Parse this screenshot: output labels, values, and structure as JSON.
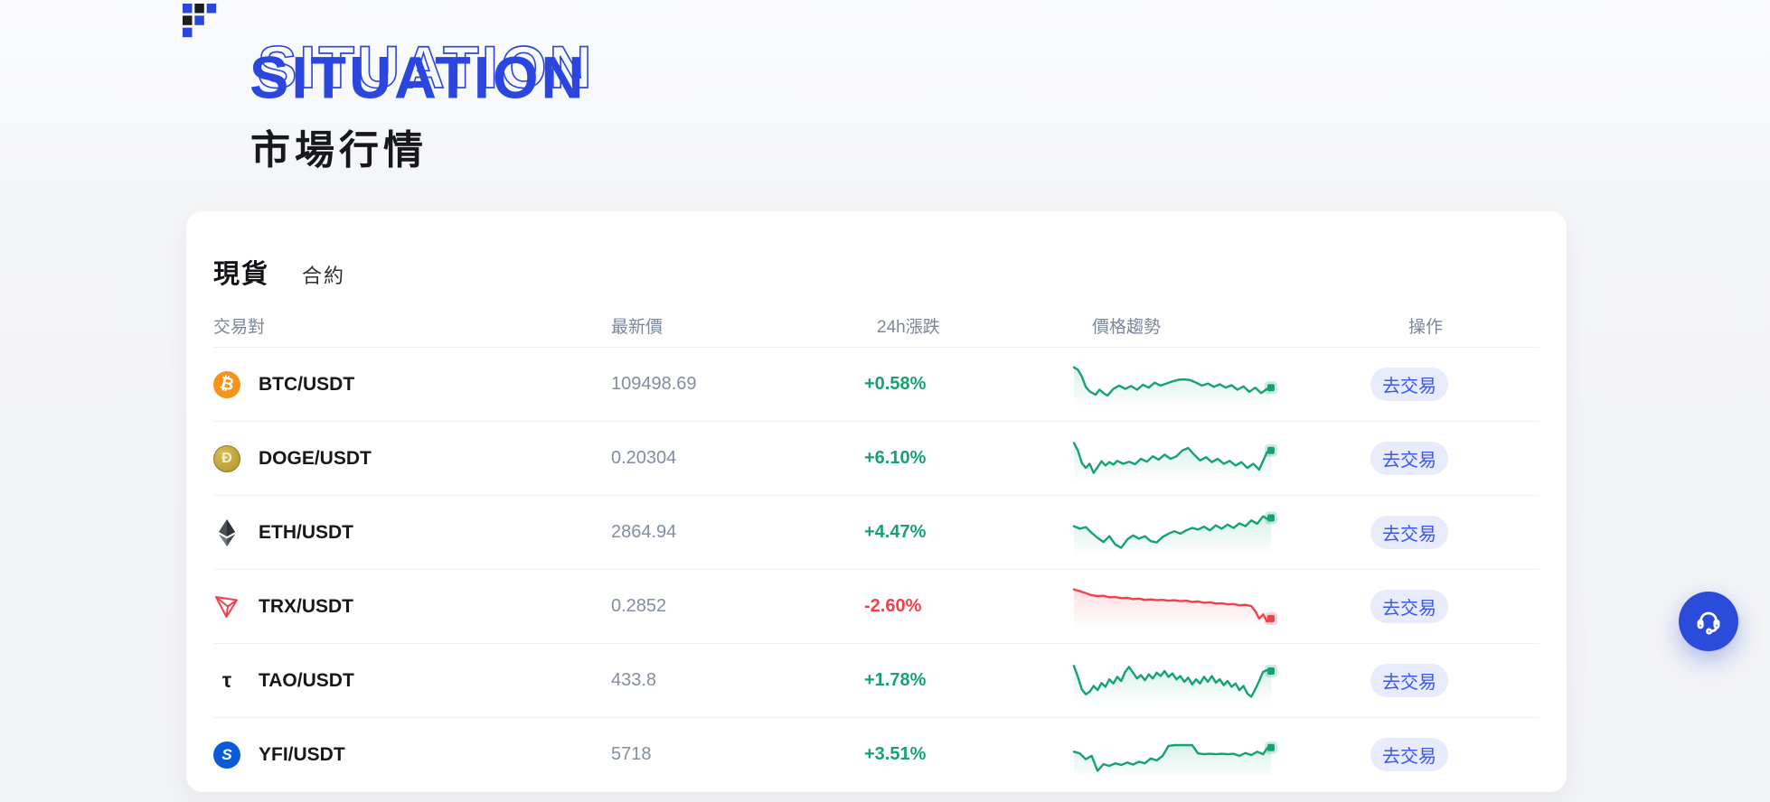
{
  "colors": {
    "brand_blue": "#2B46DF",
    "logo_black": "#1D1D1F",
    "up_green": "#14A36E",
    "down_red": "#F0414D",
    "price_gray": "#828DA3",
    "header_gray": "#7C8799",
    "button_bg": "#E7EBFC",
    "button_text": "#3B58E9",
    "support_blue": "#2B4BDB",
    "bitcoin_orange": "#F7931A",
    "doge_gold": "#C9A83C",
    "yfi_blue": "#0A5BD8"
  },
  "header": {
    "title_en": "SITUATION",
    "title_zh": "市場行情"
  },
  "market_card": {
    "tabs": [
      {
        "label": "現貨",
        "active": true
      },
      {
        "label": "合約",
        "active": false
      }
    ],
    "columns": [
      "交易對",
      "最新價",
      "24h漲跌",
      "價格趨勢",
      "操作"
    ],
    "action_label": "去交易",
    "rows": [
      {
        "pair": "BTC/USDT",
        "icon": "btc",
        "price": "109498.69",
        "change": "+0.58%",
        "direction": "up",
        "spark": [
          [
            0,
            8
          ],
          [
            2,
            14
          ],
          [
            4,
            30
          ],
          [
            6,
            55
          ],
          [
            8,
            66
          ],
          [
            11,
            74
          ],
          [
            13,
            62
          ],
          [
            15,
            70
          ],
          [
            17,
            76
          ],
          [
            20,
            60
          ],
          [
            23,
            52
          ],
          [
            26,
            60
          ],
          [
            29,
            53
          ],
          [
            32,
            62
          ],
          [
            35,
            50
          ],
          [
            38,
            57
          ],
          [
            41,
            45
          ],
          [
            44,
            52
          ],
          [
            47,
            47
          ],
          [
            50,
            42
          ],
          [
            53,
            38
          ],
          [
            56,
            37
          ],
          [
            59,
            39
          ],
          [
            62,
            45
          ],
          [
            65,
            52
          ],
          [
            68,
            47
          ],
          [
            71,
            55
          ],
          [
            74,
            49
          ],
          [
            77,
            57
          ],
          [
            80,
            51
          ],
          [
            83,
            62
          ],
          [
            86,
            54
          ],
          [
            89,
            67
          ],
          [
            92,
            57
          ],
          [
            95,
            70
          ],
          [
            98,
            60
          ],
          [
            100,
            57
          ]
        ]
      },
      {
        "pair": "DOGE/USDT",
        "icon": "doge",
        "price": "0.20304",
        "change": "+6.10%",
        "direction": "up",
        "spark": [
          [
            0,
            12
          ],
          [
            2,
            30
          ],
          [
            4,
            60
          ],
          [
            6,
            72
          ],
          [
            8,
            62
          ],
          [
            10,
            84
          ],
          [
            12,
            70
          ],
          [
            14,
            56
          ],
          [
            16,
            66
          ],
          [
            18,
            58
          ],
          [
            20,
            64
          ],
          [
            22,
            55
          ],
          [
            25,
            62
          ],
          [
            28,
            57
          ],
          [
            31,
            63
          ],
          [
            34,
            50
          ],
          [
            37,
            57
          ],
          [
            40,
            44
          ],
          [
            43,
            52
          ],
          [
            46,
            40
          ],
          [
            49,
            50
          ],
          [
            52,
            44
          ],
          [
            55,
            30
          ],
          [
            58,
            24
          ],
          [
            61,
            40
          ],
          [
            64,
            54
          ],
          [
            67,
            46
          ],
          [
            70,
            58
          ],
          [
            73,
            50
          ],
          [
            76,
            62
          ],
          [
            79,
            55
          ],
          [
            82,
            66
          ],
          [
            85,
            58
          ],
          [
            88,
            72
          ],
          [
            91,
            62
          ],
          [
            94,
            76
          ],
          [
            96,
            55
          ],
          [
            98,
            34
          ],
          [
            100,
            30
          ]
        ]
      },
      {
        "pair": "ETH/USDT",
        "icon": "eth",
        "price": "2864.94",
        "change": "+4.47%",
        "direction": "up",
        "spark": [
          [
            0,
            34
          ],
          [
            3,
            40
          ],
          [
            6,
            36
          ],
          [
            9,
            50
          ],
          [
            12,
            62
          ],
          [
            15,
            72
          ],
          [
            18,
            58
          ],
          [
            21,
            78
          ],
          [
            24,
            86
          ],
          [
            27,
            66
          ],
          [
            30,
            56
          ],
          [
            33,
            64
          ],
          [
            36,
            58
          ],
          [
            39,
            70
          ],
          [
            42,
            73
          ],
          [
            45,
            60
          ],
          [
            48,
            52
          ],
          [
            51,
            46
          ],
          [
            54,
            52
          ],
          [
            57,
            44
          ],
          [
            60,
            38
          ],
          [
            63,
            42
          ],
          [
            66,
            35
          ],
          [
            69,
            44
          ],
          [
            72,
            32
          ],
          [
            75,
            40
          ],
          [
            78,
            30
          ],
          [
            81,
            38
          ],
          [
            84,
            27
          ],
          [
            87,
            34
          ],
          [
            90,
            20
          ],
          [
            93,
            28
          ],
          [
            96,
            10
          ],
          [
            98,
            16
          ],
          [
            100,
            14
          ]
        ]
      },
      {
        "pair": "TRX/USDT",
        "icon": "trx",
        "price": "0.2852",
        "change": "-2.60%",
        "direction": "down",
        "spark": [
          [
            0,
            8
          ],
          [
            3,
            12
          ],
          [
            6,
            17
          ],
          [
            9,
            22
          ],
          [
            12,
            24
          ],
          [
            15,
            23
          ],
          [
            18,
            27
          ],
          [
            21,
            26
          ],
          [
            24,
            29
          ],
          [
            27,
            28
          ],
          [
            30,
            31
          ],
          [
            33,
            30
          ],
          [
            36,
            33
          ],
          [
            39,
            32
          ],
          [
            42,
            34
          ],
          [
            45,
            33
          ],
          [
            48,
            35
          ],
          [
            51,
            34
          ],
          [
            54,
            36
          ],
          [
            57,
            35
          ],
          [
            60,
            38
          ],
          [
            63,
            37
          ],
          [
            66,
            40
          ],
          [
            69,
            39
          ],
          [
            72,
            42
          ],
          [
            75,
            41
          ],
          [
            78,
            44
          ],
          [
            81,
            43
          ],
          [
            84,
            46
          ],
          [
            87,
            45
          ],
          [
            90,
            48
          ],
          [
            92,
            60
          ],
          [
            94,
            78
          ],
          [
            96,
            68
          ],
          [
            98,
            85
          ],
          [
            100,
            78
          ]
        ]
      },
      {
        "pair": "TAO/USDT",
        "icon": "tao",
        "price": "433.8",
        "change": "+1.78%",
        "direction": "up",
        "spark": [
          [
            0,
            14
          ],
          [
            2,
            40
          ],
          [
            4,
            70
          ],
          [
            6,
            82
          ],
          [
            8,
            76
          ],
          [
            10,
            62
          ],
          [
            12,
            72
          ],
          [
            14,
            55
          ],
          [
            16,
            64
          ],
          [
            18,
            46
          ],
          [
            20,
            56
          ],
          [
            22,
            40
          ],
          [
            24,
            50
          ],
          [
            26,
            28
          ],
          [
            28,
            16
          ],
          [
            30,
            30
          ],
          [
            32,
            44
          ],
          [
            34,
            36
          ],
          [
            36,
            48
          ],
          [
            38,
            34
          ],
          [
            40,
            44
          ],
          [
            42,
            30
          ],
          [
            44,
            38
          ],
          [
            46,
            26
          ],
          [
            48,
            40
          ],
          [
            50,
            32
          ],
          [
            52,
            46
          ],
          [
            54,
            38
          ],
          [
            56,
            52
          ],
          [
            58,
            42
          ],
          [
            60,
            58
          ],
          [
            62,
            46
          ],
          [
            64,
            56
          ],
          [
            66,
            40
          ],
          [
            68,
            52
          ],
          [
            70,
            38
          ],
          [
            72,
            54
          ],
          [
            74,
            46
          ],
          [
            76,
            60
          ],
          [
            78,
            50
          ],
          [
            80,
            64
          ],
          [
            82,
            56
          ],
          [
            84,
            72
          ],
          [
            86,
            62
          ],
          [
            88,
            80
          ],
          [
            90,
            88
          ],
          [
            92,
            70
          ],
          [
            94,
            50
          ],
          [
            96,
            28
          ],
          [
            98,
            24
          ],
          [
            100,
            26
          ]
        ]
      },
      {
        "pair": "YFI/USDT",
        "icon": "yfi",
        "price": "5718",
        "change": "+3.51%",
        "direction": "up",
        "spark": [
          [
            0,
            42
          ],
          [
            3,
            46
          ],
          [
            6,
            60
          ],
          [
            9,
            52
          ],
          [
            12,
            88
          ],
          [
            15,
            72
          ],
          [
            18,
            76
          ],
          [
            21,
            70
          ],
          [
            24,
            74
          ],
          [
            27,
            68
          ],
          [
            30,
            73
          ],
          [
            33,
            66
          ],
          [
            36,
            70
          ],
          [
            39,
            58
          ],
          [
            42,
            63
          ],
          [
            45,
            52
          ],
          [
            48,
            28
          ],
          [
            51,
            26
          ],
          [
            54,
            26
          ],
          [
            57,
            26
          ],
          [
            60,
            26
          ],
          [
            63,
            46
          ],
          [
            66,
            48
          ],
          [
            69,
            47
          ],
          [
            72,
            48
          ],
          [
            75,
            47
          ],
          [
            78,
            48
          ],
          [
            81,
            47
          ],
          [
            84,
            52
          ],
          [
            87,
            45
          ],
          [
            90,
            50
          ],
          [
            93,
            42
          ],
          [
            96,
            48
          ],
          [
            98,
            34
          ],
          [
            100,
            32
          ]
        ]
      }
    ]
  },
  "support": {
    "name": "customer-service"
  }
}
